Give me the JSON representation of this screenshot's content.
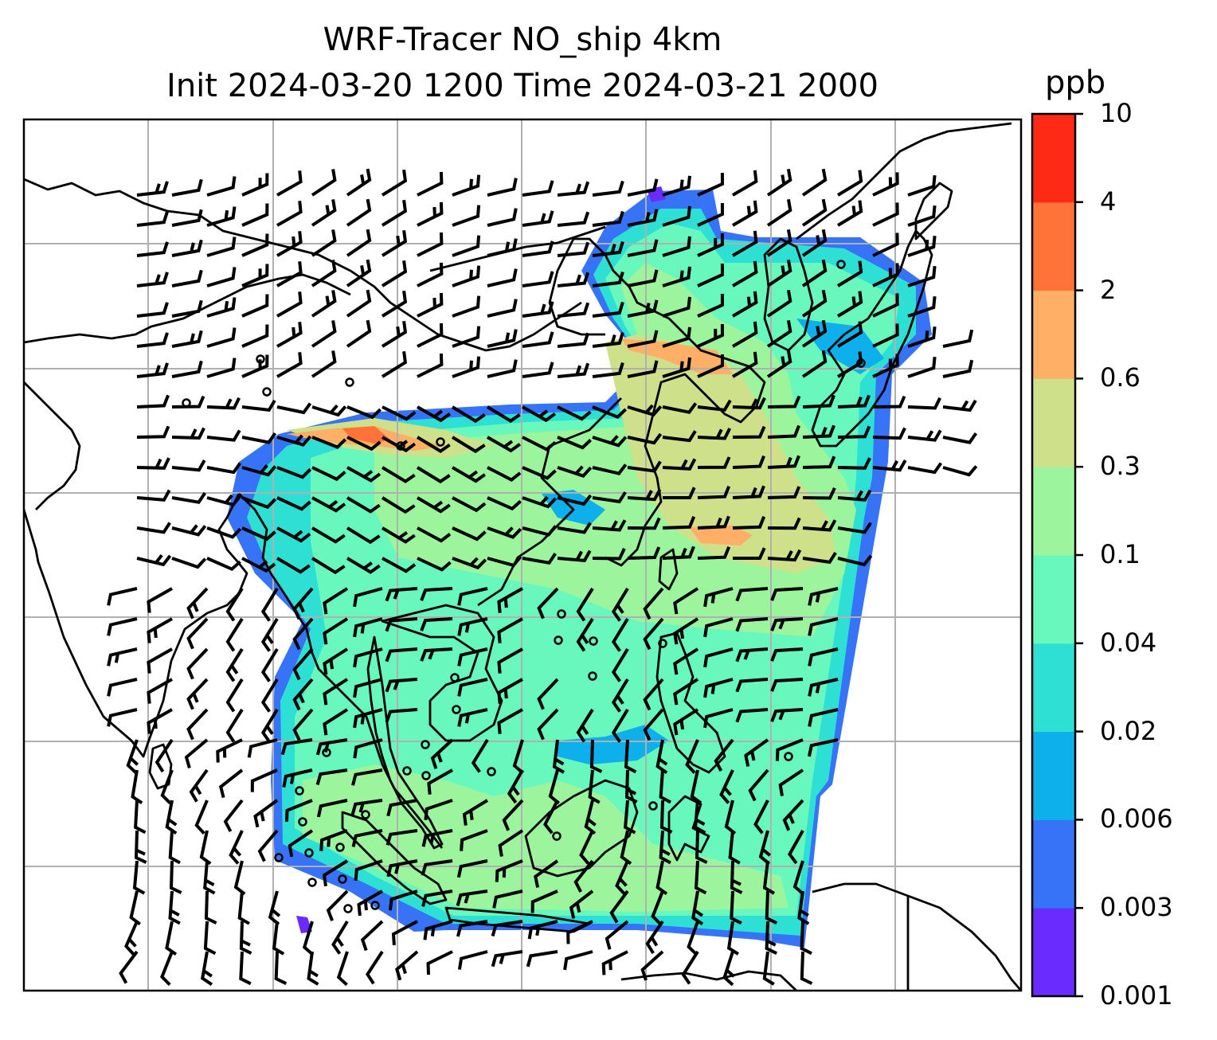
{
  "title": {
    "line1": "WRF-Tracer NO_ship 4km",
    "line2": "Init 2024-03-20 1200 Time 2024-03-21 2000"
  },
  "colorbar": {
    "unit": "ppb",
    "tick_labels": [
      "0.001",
      "0.003",
      "0.006",
      "0.02",
      "0.04",
      "0.1",
      "0.3",
      "0.6",
      "2",
      "4",
      "10"
    ],
    "level_colors": [
      "#6a2bff",
      "#3673f6",
      "#0db0ea",
      "#2ee0d4",
      "#68f8bd",
      "#9cf59c",
      "#cfe08a",
      "#ffb066",
      "#ff7338",
      "#ff2a16"
    ]
  },
  "map": {
    "graticule": true,
    "coastlines": true,
    "barb_color": "#000000"
  }
}
